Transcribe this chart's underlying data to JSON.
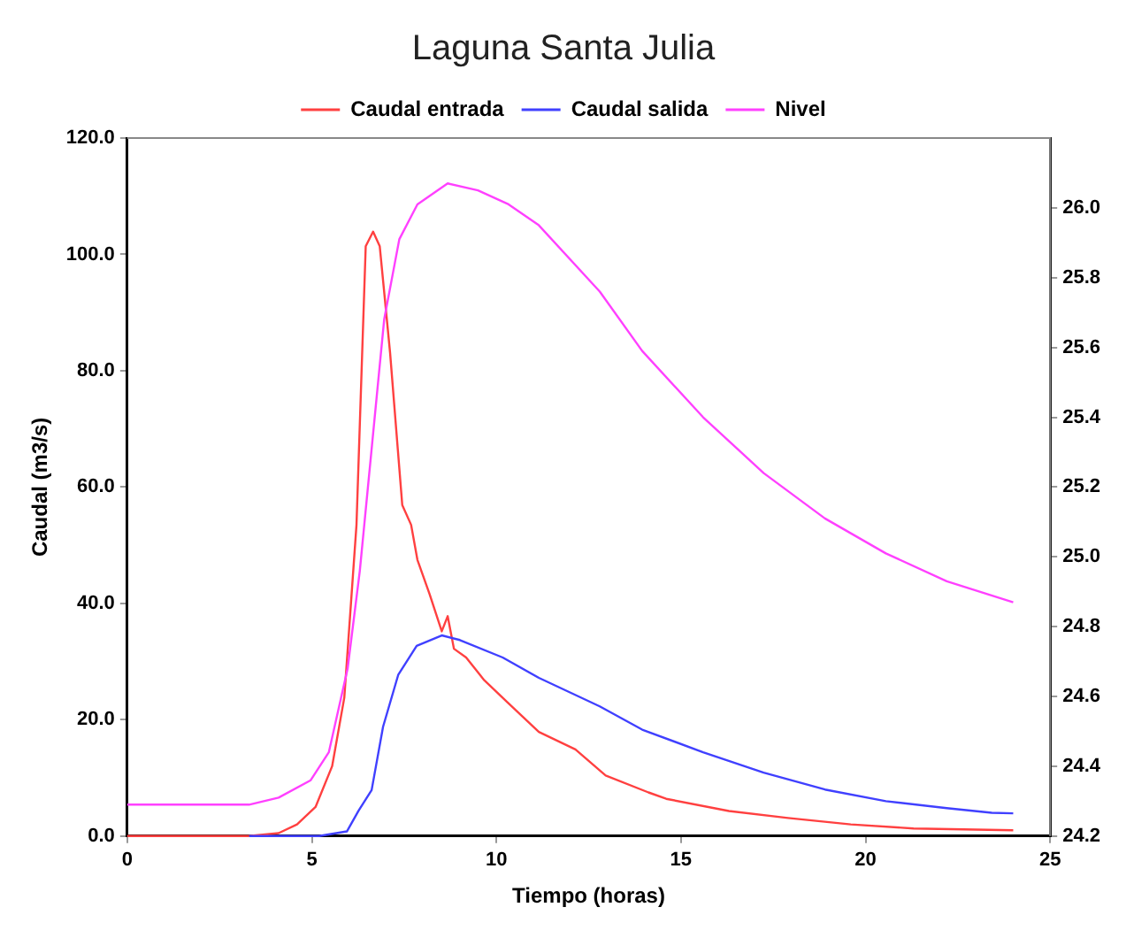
{
  "chart_data": {
    "type": "line",
    "title": "Laguna Santa Julia",
    "xlabel": "Tiempo (horas)",
    "ylabel": "Caudal (m3/s)",
    "xlim": [
      0,
      25
    ],
    "xticks": [
      0,
      5,
      10,
      15,
      20,
      25
    ],
    "ylim": [
      0,
      120
    ],
    "yticks": [
      {
        "value": 0,
        "label": "0.0"
      },
      {
        "value": 20,
        "label": "20.0"
      },
      {
        "value": 40,
        "label": "40.0"
      },
      {
        "value": 60,
        "label": "60.0"
      },
      {
        "value": 80,
        "label": "80.0"
      },
      {
        "value": 100,
        "label": "100.0"
      },
      {
        "value": 120,
        "label": "120.0"
      }
    ],
    "y2lim": [
      24.2,
      26.2
    ],
    "y2ticks": [
      {
        "value": 24.2,
        "label": "24.2"
      },
      {
        "value": 24.4,
        "label": "24.4"
      },
      {
        "value": 24.6,
        "label": "24.6"
      },
      {
        "value": 24.8,
        "label": "24.8"
      },
      {
        "value": 25,
        "label": "25.0"
      },
      {
        "value": 25.2,
        "label": "25.2"
      },
      {
        "value": 25.4,
        "label": "25.4"
      },
      {
        "value": 25.6,
        "label": "25.6"
      },
      {
        "value": 25.8,
        "label": "25.8"
      },
      {
        "value": 26,
        "label": "26.0"
      }
    ],
    "legend": "top",
    "grid": false,
    "marker": "none",
    "line_style": "solid",
    "series": [
      {
        "name": "Caudal entrada",
        "color": "#ff4040",
        "x": [
          0,
          3.3,
          4.1,
          4.6,
          5.1,
          5.55,
          5.88,
          6.21,
          6.46,
          6.66,
          6.84,
          7.12,
          7.45,
          7.69,
          7.86,
          8.19,
          8.52,
          8.68,
          8.85,
          9.18,
          9.67,
          10.33,
          11.15,
          12.14,
          12.96,
          14.12,
          14.6,
          16.3,
          17.9,
          19.6,
          21.3,
          24
        ],
        "values": [
          0,
          0,
          0.5,
          2,
          5,
          12,
          23.8,
          53.5,
          101.4,
          103.9,
          101.4,
          83.1,
          56.9,
          53.5,
          47.5,
          41.6,
          35.2,
          37.8,
          32.2,
          30.7,
          26.8,
          22.8,
          17.9,
          14.9,
          10.4,
          7.5,
          6.4,
          4.3,
          3.1,
          2,
          1.3,
          1
        ]
      },
      {
        "name": "Caudal salida",
        "color": "#4040ff",
        "x": [
          3.3,
          5.2,
          5.95,
          6.27,
          6.62,
          6.93,
          7.34,
          7.84,
          8.52,
          9.01,
          10.17,
          11.15,
          12.8,
          13.95,
          15.6,
          17.24,
          18.9,
          20.55,
          22.2,
          23.42,
          24
        ],
        "values": [
          0,
          0,
          0.8,
          4.4,
          7.9,
          18.8,
          27.7,
          32.7,
          34.5,
          33.7,
          30.7,
          27.2,
          22.3,
          18.3,
          14.4,
          10.9,
          8,
          6,
          4.8,
          4,
          3.9
        ]
      },
      {
        "name": "Nivel",
        "color": "#ff40ff",
        "axis": "y2",
        "x": [
          0,
          3.3,
          4.1,
          4.97,
          5.46,
          5.97,
          6.3,
          6.63,
          6.96,
          7.37,
          7.86,
          8.68,
          9.5,
          10.33,
          11.15,
          12.8,
          13.95,
          15.6,
          17.24,
          18.9,
          20.55,
          22.2,
          24
        ],
        "values": [
          24.29,
          24.29,
          24.31,
          24.36,
          24.44,
          24.68,
          24.96,
          25.32,
          25.68,
          25.91,
          26.01,
          26.07,
          26.05,
          26.01,
          25.95,
          25.76,
          25.59,
          25.4,
          25.24,
          25.11,
          25.01,
          24.93,
          24.87
        ]
      }
    ]
  }
}
